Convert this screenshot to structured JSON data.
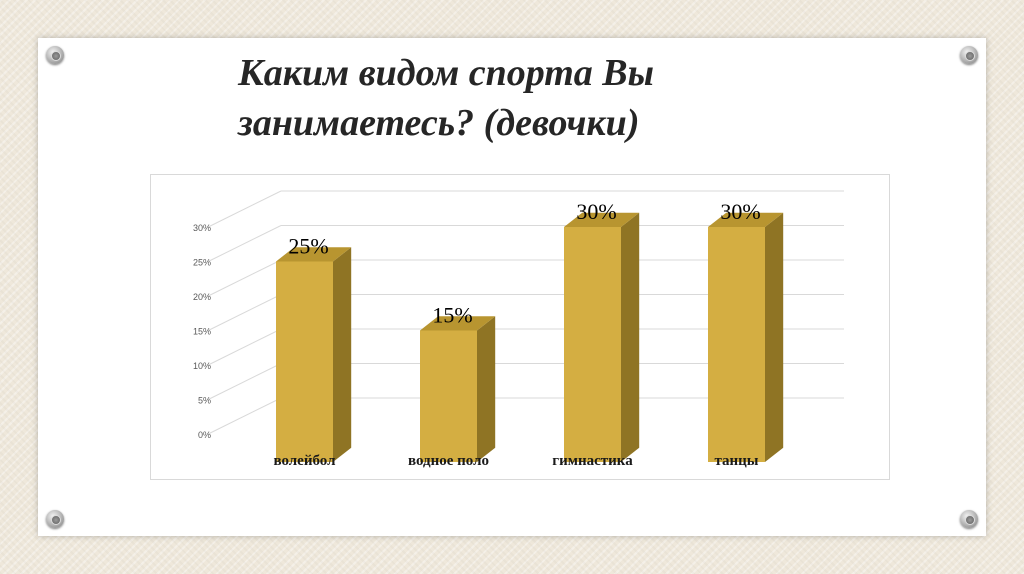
{
  "slide": {
    "title": "Каким видом спорта Вы\nзанимаетесь? (девочки)"
  },
  "colors": {
    "bar_front": "#d4ae42",
    "bar_side": "#8f7424",
    "bar_top": "#b89530",
    "grid": "#d9d9d9",
    "axis_text": "#595959"
  },
  "chart_data": {
    "type": "bar",
    "style": "3d-column",
    "title": "",
    "xlabel": "",
    "ylabel": "",
    "categories": [
      "волейбол",
      "водное поло",
      "гимнастика",
      "танцы"
    ],
    "values": [
      25,
      15,
      30,
      30
    ],
    "value_labels": [
      "25%",
      "15%",
      "30%",
      "30%"
    ],
    "yticks": [
      "0%",
      "5%",
      "10%",
      "15%",
      "20%",
      "25%",
      "30%"
    ],
    "ylim": [
      0,
      30
    ],
    "grid": true,
    "legend": "none"
  }
}
